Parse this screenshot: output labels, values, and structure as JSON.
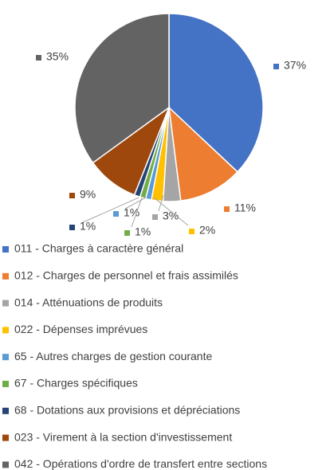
{
  "chart_data": {
    "type": "pie",
    "categories": [
      "011 - Charges à caractère général",
      "012 - Charges de personnel et frais assimilés",
      "014 - Atténuations de produits",
      "022 - Dépenses imprévues",
      "65 - Autres charges de gestion courante",
      "67 - Charges spécifiques",
      "68 - Dotations aux provisions et dépréciations",
      "023 - Virement à la section d'investissement",
      "042 - Opérations d'ordre de transfert entre sections"
    ],
    "values": [
      37,
      11,
      3,
      2,
      1,
      1,
      1,
      9,
      35
    ],
    "value_labels": [
      "37%",
      "11%",
      "3%",
      "2%",
      "1%",
      "1%",
      "1%",
      "9%",
      "35%"
    ],
    "colors": [
      "#4472c4",
      "#ed7d31",
      "#a5a5a5",
      "#ffc000",
      "#5b9bd5",
      "#70ad47",
      "#264478",
      "#9e480e",
      "#636363"
    ],
    "legend": "bottom"
  }
}
